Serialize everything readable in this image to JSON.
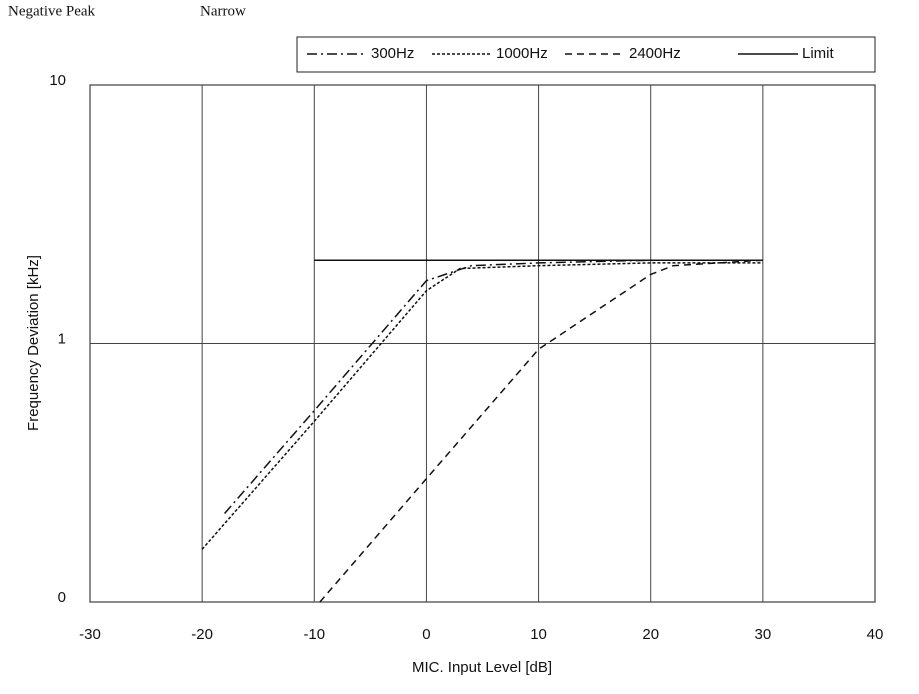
{
  "chart_data": {
    "type": "line",
    "header_left": "Negative Peak",
    "header_right": "Narrow",
    "xlabel": "MIC. Input Level [dB]",
    "ylabel": "Frequency Deviation [kHz]",
    "xlim": [
      -30,
      40
    ],
    "xticks": [
      -30,
      -20,
      -10,
      0,
      10,
      20,
      30,
      40
    ],
    "ylim": [
      0.1,
      10
    ],
    "yticks": [
      {
        "value": 0.1,
        "label": "0"
      },
      1,
      10
    ],
    "y_scale": "log",
    "grid": true,
    "series": [
      {
        "name": "300Hz",
        "color": "#111111",
        "dash": "10 4 2 4",
        "x": [
          -18,
          -10,
          0,
          4,
          10,
          20,
          30
        ],
        "values": [
          0.22,
          0.55,
          1.75,
          2.0,
          2.05,
          2.1,
          2.1
        ]
      },
      {
        "name": "1000Hz",
        "color": "#111111",
        "dash": "3 2",
        "x": [
          -20,
          -10,
          0,
          3,
          10,
          20,
          30
        ],
        "values": [
          0.16,
          0.5,
          1.6,
          1.95,
          2.0,
          2.05,
          2.05
        ]
      },
      {
        "name": "2400Hz",
        "color": "#111111",
        "dash": "7 5",
        "x": [
          -9.5,
          0,
          10,
          20,
          22,
          30
        ],
        "values": [
          0.1,
          0.3,
          0.95,
          1.85,
          2.0,
          2.1
        ]
      },
      {
        "name": "Limit",
        "color": "#111111",
        "dash": "none",
        "x": [
          -10,
          30
        ],
        "values": [
          2.1,
          2.1
        ]
      }
    ]
  }
}
